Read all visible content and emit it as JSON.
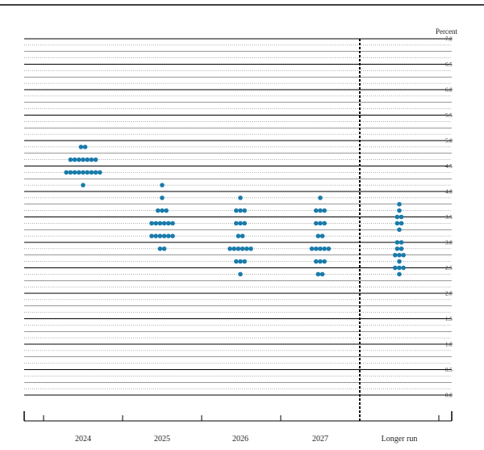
{
  "chart_data": {
    "type": "scatter",
    "unit_label": "Percent",
    "categories": [
      "2024",
      "2025",
      "2026",
      "2027",
      "Longer run"
    ],
    "ylim": [
      0,
      7.0
    ],
    "y_ticks": [
      "0.0",
      "0.5",
      "1.0",
      "1.5",
      "2.0",
      "2.5",
      "3.0",
      "3.5",
      "4.0",
      "4.5",
      "5.0",
      "5.5",
      "6.0",
      "6.5",
      "7.0"
    ],
    "minor_step": 0.125,
    "separator_before": "Longer run",
    "dot_color": "#1a7bab",
    "dots": [
      {
        "category": "2024",
        "y": 4.875,
        "count": 2
      },
      {
        "category": "2024",
        "y": 4.625,
        "count": 7
      },
      {
        "category": "2024",
        "y": 4.375,
        "count": 9
      },
      {
        "category": "2024",
        "y": 4.125,
        "count": 1
      },
      {
        "category": "2025",
        "y": 4.125,
        "count": 1
      },
      {
        "category": "2025",
        "y": 3.875,
        "count": 1
      },
      {
        "category": "2025",
        "y": 3.625,
        "count": 3
      },
      {
        "category": "2025",
        "y": 3.375,
        "count": 6
      },
      {
        "category": "2025",
        "y": 3.125,
        "count": 6
      },
      {
        "category": "2025",
        "y": 2.875,
        "count": 2
      },
      {
        "category": "2026",
        "y": 3.875,
        "count": 1
      },
      {
        "category": "2026",
        "y": 3.625,
        "count": 3
      },
      {
        "category": "2026",
        "y": 3.375,
        "count": 3
      },
      {
        "category": "2026",
        "y": 3.125,
        "count": 2
      },
      {
        "category": "2026",
        "y": 2.875,
        "count": 6
      },
      {
        "category": "2026",
        "y": 2.625,
        "count": 3
      },
      {
        "category": "2026",
        "y": 2.375,
        "count": 1
      },
      {
        "category": "2027",
        "y": 3.875,
        "count": 1
      },
      {
        "category": "2027",
        "y": 3.625,
        "count": 3
      },
      {
        "category": "2027",
        "y": 3.375,
        "count": 3
      },
      {
        "category": "2027",
        "y": 3.125,
        "count": 2
      },
      {
        "category": "2027",
        "y": 2.875,
        "count": 5
      },
      {
        "category": "2027",
        "y": 2.625,
        "count": 3
      },
      {
        "category": "2027",
        "y": 2.375,
        "count": 2
      },
      {
        "category": "Longer run",
        "y": 3.75,
        "count": 1
      },
      {
        "category": "Longer run",
        "y": 3.625,
        "count": 1
      },
      {
        "category": "Longer run",
        "y": 3.5,
        "count": 2
      },
      {
        "category": "Longer run",
        "y": 3.375,
        "count": 2
      },
      {
        "category": "Longer run",
        "y": 3.25,
        "count": 1
      },
      {
        "category": "Longer run",
        "y": 3.0,
        "count": 2
      },
      {
        "category": "Longer run",
        "y": 2.875,
        "count": 2
      },
      {
        "category": "Longer run",
        "y": 2.75,
        "count": 3
      },
      {
        "category": "Longer run",
        "y": 2.625,
        "count": 1
      },
      {
        "category": "Longer run",
        "y": 2.5,
        "count": 3
      },
      {
        "category": "Longer run",
        "y": 2.375,
        "count": 1
      }
    ]
  }
}
